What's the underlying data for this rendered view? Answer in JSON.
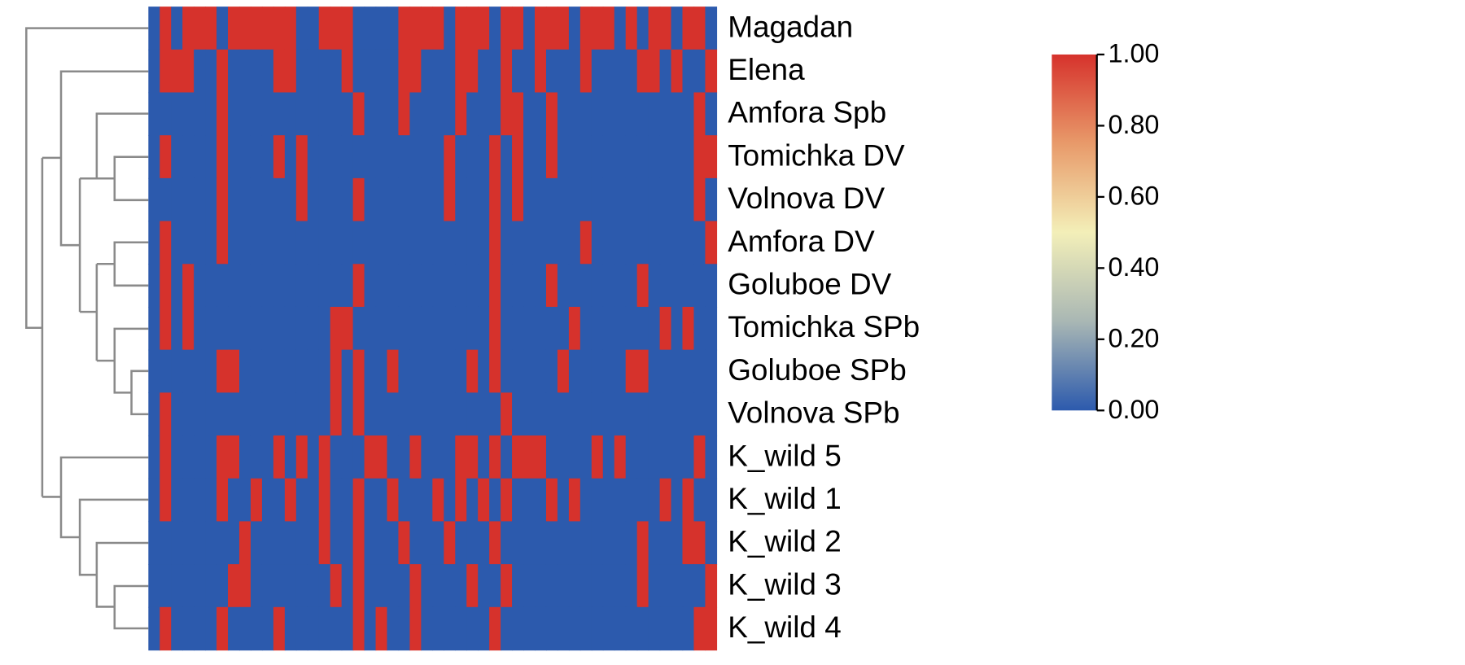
{
  "chart_data": {
    "type": "heatmap",
    "rows": [
      "Magadan",
      "Elena",
      "Amfora Spb",
      "Tomichka DV",
      "Volnova DV",
      "Amfora DV",
      "Goluboe DV",
      "Tomichka SPb",
      "Goluboe SPb",
      "Volnova SPb",
      "K_wild 5",
      "K_wild 1",
      "K_wild 2",
      "K_wild 3",
      "K_wild 4"
    ],
    "values": [
      [
        0,
        1,
        0,
        1,
        1,
        1,
        0,
        1,
        1,
        1,
        1,
        1,
        1,
        0,
        0,
        1,
        1,
        1,
        0,
        0,
        0,
        0,
        1,
        1,
        1,
        1,
        0,
        1,
        1,
        1,
        0,
        1,
        1,
        0,
        1,
        1,
        1,
        0,
        1,
        1,
        1,
        0,
        1,
        0,
        1,
        1,
        0,
        1,
        1,
        0
      ],
      [
        0,
        1,
        1,
        1,
        0,
        0,
        1,
        0,
        0,
        0,
        0,
        1,
        1,
        0,
        0,
        0,
        0,
        1,
        0,
        0,
        0,
        0,
        1,
        1,
        0,
        0,
        0,
        1,
        1,
        0,
        0,
        1,
        0,
        0,
        1,
        0,
        0,
        0,
        1,
        0,
        0,
        0,
        0,
        1,
        1,
        0,
        1,
        0,
        0,
        1
      ],
      [
        0,
        0,
        0,
        0,
        0,
        0,
        1,
        0,
        0,
        0,
        0,
        0,
        0,
        0,
        0,
        0,
        0,
        0,
        1,
        0,
        0,
        0,
        1,
        0,
        0,
        0,
        0,
        1,
        0,
        0,
        0,
        1,
        1,
        0,
        0,
        1,
        0,
        0,
        0,
        0,
        0,
        0,
        0,
        0,
        0,
        0,
        0,
        0,
        1,
        0
      ],
      [
        0,
        1,
        0,
        0,
        0,
        0,
        1,
        0,
        0,
        0,
        0,
        1,
        0,
        1,
        0,
        0,
        0,
        0,
        0,
        0,
        0,
        0,
        0,
        0,
        0,
        0,
        1,
        0,
        0,
        0,
        1,
        0,
        1,
        0,
        0,
        1,
        0,
        0,
        0,
        0,
        0,
        0,
        0,
        0,
        0,
        0,
        0,
        0,
        1,
        1
      ],
      [
        0,
        0,
        0,
        0,
        0,
        0,
        1,
        0,
        0,
        0,
        0,
        0,
        0,
        1,
        0,
        0,
        0,
        0,
        1,
        0,
        0,
        0,
        0,
        0,
        0,
        0,
        1,
        0,
        0,
        0,
        1,
        0,
        1,
        0,
        0,
        0,
        0,
        0,
        0,
        0,
        0,
        0,
        0,
        0,
        0,
        0,
        0,
        0,
        1,
        0
      ],
      [
        0,
        1,
        0,
        0,
        0,
        0,
        1,
        0,
        0,
        0,
        0,
        0,
        0,
        0,
        0,
        0,
        0,
        0,
        0,
        0,
        0,
        0,
        0,
        0,
        0,
        0,
        0,
        0,
        0,
        0,
        1,
        0,
        0,
        0,
        0,
        0,
        0,
        0,
        1,
        0,
        0,
        0,
        0,
        0,
        0,
        0,
        0,
        0,
        0,
        1
      ],
      [
        0,
        1,
        0,
        1,
        0,
        0,
        0,
        0,
        0,
        0,
        0,
        0,
        0,
        0,
        0,
        0,
        0,
        0,
        1,
        0,
        0,
        0,
        0,
        0,
        0,
        0,
        0,
        0,
        0,
        0,
        1,
        0,
        0,
        0,
        0,
        1,
        0,
        0,
        0,
        0,
        0,
        0,
        0,
        1,
        0,
        0,
        0,
        0,
        0,
        0
      ],
      [
        0,
        1,
        0,
        1,
        0,
        0,
        0,
        0,
        0,
        0,
        0,
        0,
        0,
        0,
        0,
        0,
        1,
        1,
        0,
        0,
        0,
        0,
        0,
        0,
        0,
        0,
        0,
        0,
        0,
        0,
        1,
        0,
        0,
        0,
        0,
        0,
        0,
        1,
        0,
        0,
        0,
        0,
        0,
        0,
        0,
        1,
        0,
        1,
        0,
        0
      ],
      [
        0,
        0,
        0,
        0,
        0,
        0,
        1,
        1,
        0,
        0,
        0,
        0,
        0,
        0,
        0,
        0,
        1,
        0,
        1,
        0,
        0,
        1,
        0,
        0,
        0,
        0,
        0,
        0,
        1,
        0,
        1,
        0,
        0,
        0,
        0,
        0,
        1,
        0,
        0,
        0,
        0,
        0,
        1,
        1,
        0,
        0,
        0,
        0,
        0,
        0
      ],
      [
        0,
        1,
        0,
        0,
        0,
        0,
        0,
        0,
        0,
        0,
        0,
        0,
        0,
        0,
        0,
        0,
        1,
        0,
        1,
        0,
        0,
        0,
        0,
        0,
        0,
        0,
        0,
        0,
        0,
        0,
        0,
        1,
        0,
        0,
        0,
        0,
        0,
        0,
        0,
        0,
        0,
        0,
        0,
        0,
        0,
        0,
        0,
        0,
        0,
        0
      ],
      [
        0,
        1,
        0,
        0,
        0,
        0,
        1,
        1,
        0,
        0,
        0,
        1,
        0,
        1,
        0,
        1,
        0,
        0,
        0,
        1,
        1,
        0,
        0,
        1,
        0,
        0,
        0,
        1,
        1,
        0,
        1,
        0,
        1,
        1,
        1,
        0,
        0,
        0,
        0,
        1,
        0,
        1,
        0,
        0,
        0,
        0,
        0,
        0,
        1,
        0
      ],
      [
        0,
        1,
        0,
        0,
        0,
        0,
        1,
        0,
        0,
        1,
        0,
        0,
        1,
        0,
        0,
        1,
        0,
        0,
        1,
        0,
        0,
        1,
        0,
        0,
        0,
        1,
        0,
        1,
        0,
        1,
        0,
        1,
        0,
        0,
        0,
        1,
        0,
        1,
        0,
        0,
        0,
        0,
        0,
        0,
        0,
        1,
        0,
        1,
        0,
        0
      ],
      [
        0,
        0,
        0,
        0,
        0,
        0,
        0,
        0,
        1,
        0,
        0,
        0,
        0,
        0,
        0,
        1,
        0,
        0,
        1,
        0,
        0,
        0,
        1,
        0,
        0,
        0,
        1,
        0,
        0,
        0,
        1,
        0,
        0,
        0,
        0,
        0,
        0,
        0,
        0,
        0,
        0,
        0,
        0,
        1,
        0,
        0,
        0,
        1,
        1,
        0
      ],
      [
        0,
        0,
        0,
        0,
        0,
        0,
        0,
        1,
        1,
        0,
        0,
        0,
        0,
        0,
        0,
        0,
        1,
        0,
        1,
        0,
        0,
        0,
        0,
        1,
        0,
        0,
        0,
        0,
        1,
        0,
        0,
        1,
        0,
        0,
        0,
        0,
        0,
        0,
        0,
        0,
        0,
        0,
        0,
        1,
        0,
        0,
        0,
        0,
        0,
        1
      ],
      [
        0,
        1,
        0,
        0,
        0,
        0,
        1,
        0,
        0,
        0,
        0,
        1,
        0,
        0,
        0,
        0,
        0,
        0,
        1,
        0,
        1,
        0,
        0,
        1,
        0,
        0,
        0,
        0,
        0,
        0,
        1,
        0,
        0,
        0,
        0,
        0,
        0,
        0,
        0,
        0,
        0,
        0,
        0,
        0,
        0,
        0,
        0,
        0,
        1,
        1
      ]
    ],
    "colormap": [
      "#2c5aad",
      "#a9b7b4",
      "#f3efb8",
      "#e89a6a",
      "#d6322c"
    ],
    "zlim": [
      0,
      1
    ],
    "colorbar_ticks": [
      {
        "value": 0,
        "label": "0.00"
      },
      {
        "value": 0.2,
        "label": "0.20"
      },
      {
        "value": 0.4,
        "label": "0.40"
      },
      {
        "value": 0.6,
        "label": "0.60"
      },
      {
        "value": 0.8,
        "label": "0.80"
      },
      {
        "value": 1,
        "label": "1.00"
      }
    ]
  }
}
